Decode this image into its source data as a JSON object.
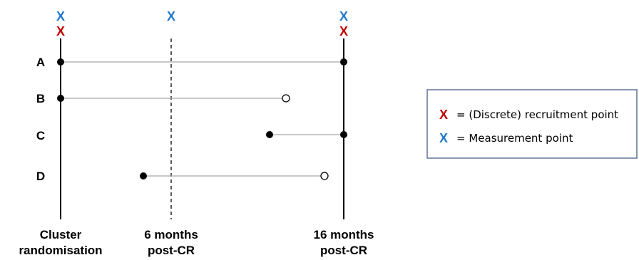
{
  "marker_symbol": "X",
  "colors": {
    "recruitment": "#c00000",
    "measurement": "#1f78c8",
    "axis": "#000000",
    "interval_line": "#a6a6a6",
    "legend_border": "#3a4f7a"
  },
  "timepoints": [
    {
      "id": "cluster-randomisation",
      "label_line1": "Cluster",
      "label_line2": "randomisation",
      "line_style": "solid",
      "has_recruitment": true,
      "has_measurement": true
    },
    {
      "id": "six-months",
      "label_line1": "6 months",
      "label_line2": "post-CR",
      "line_style": "dashed",
      "has_recruitment": false,
      "has_measurement": true
    },
    {
      "id": "sixteen-months",
      "label_line1": "16 months",
      "label_line2": "post-CR",
      "line_style": "solid",
      "has_recruitment": true,
      "has_measurement": true
    }
  ],
  "rows": [
    {
      "label": "A",
      "start": "filled",
      "end": "filled"
    },
    {
      "label": "B",
      "start": "filled",
      "end": "open"
    },
    {
      "label": "C",
      "start": "filled",
      "end": "filled"
    },
    {
      "label": "D",
      "start": "filled",
      "end": "open"
    }
  ],
  "legend": {
    "items": [
      {
        "symbol": "X",
        "color": "#c00000",
        "text": "= (Discrete) recruitment point"
      },
      {
        "symbol": "X",
        "color": "#1f78c8",
        "text": "= Measurement point"
      }
    ]
  }
}
